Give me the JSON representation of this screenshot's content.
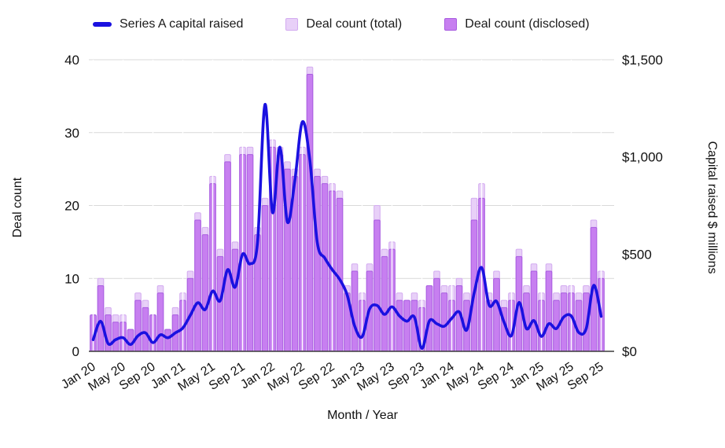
{
  "chart_data": {
    "type": "combo-bar-line",
    "x_axis": {
      "title": "Month / Year",
      "tick_every": 4,
      "months": [
        "Jan 20",
        "Feb 20",
        "Mar 20",
        "Apr 20",
        "May 20",
        "Jun 20",
        "Jul 20",
        "Aug 20",
        "Sep 20",
        "Oct 20",
        "Nov 20",
        "Dec 20",
        "Jan 21",
        "Feb 21",
        "Mar 21",
        "Apr 21",
        "May 21",
        "Jun 21",
        "Jul 21",
        "Aug 21",
        "Sep 21",
        "Oct 21",
        "Nov 21",
        "Dec 21",
        "Jan 22",
        "Feb 22",
        "Mar 22",
        "Apr 22",
        "May 22",
        "Jun 22",
        "Jul 22",
        "Aug 22",
        "Sep 22",
        "Oct 22",
        "Nov 22",
        "Dec 22",
        "Jan 23",
        "Feb 23",
        "Mar 23",
        "Apr 23",
        "May 23",
        "Jun 23",
        "Jul 23",
        "Aug 23",
        "Sep 23",
        "Oct 23",
        "Nov 23",
        "Dec 23",
        "Jan 24",
        "Feb 24",
        "Mar 24",
        "Apr 24",
        "May 24",
        "Jun 24",
        "Jul 24",
        "Aug 24",
        "Sep 24",
        "Oct 24",
        "Nov 24",
        "Dec 24",
        "Jan 25",
        "Feb 25",
        "Mar 25",
        "Apr 25",
        "May 25",
        "Jun 25",
        "Jul 25",
        "Aug 25",
        "Sep 25"
      ]
    },
    "y_left": {
      "title": "Deal count",
      "min": 0,
      "max": 40,
      "ticks": [
        0,
        10,
        20,
        30,
        40
      ]
    },
    "y_right": {
      "title": "Capital raised $ millions",
      "min": 0,
      "max": 1500,
      "tick_values": [
        0,
        500,
        1000,
        1500
      ],
      "tick_labels": [
        "$0",
        "$500",
        "$1,000",
        "$1,500"
      ]
    },
    "legend": [
      {
        "label": "Series A capital raised",
        "type": "line",
        "color": "#1a11e0"
      },
      {
        "label": "Deal count (total)",
        "type": "square",
        "color": "#e8d0f8"
      },
      {
        "label": "Deal count (disclosed)",
        "type": "square",
        "color": "#c77ff0"
      }
    ],
    "series": [
      {
        "name": "Deal count (total)",
        "type": "bar",
        "axis": "left",
        "values": [
          5,
          10,
          6,
          5,
          5,
          3,
          8,
          7,
          5,
          9,
          3,
          6,
          8,
          11,
          19,
          17,
          24,
          14,
          27,
          15,
          28,
          28,
          17,
          21,
          29,
          28,
          26,
          25,
          28,
          39,
          25,
          24,
          23,
          22,
          9,
          12,
          8,
          12,
          20,
          14,
          15,
          8,
          7,
          8,
          7,
          9,
          11,
          9,
          9,
          10,
          8,
          21,
          23,
          8,
          11,
          7,
          8,
          14,
          9,
          12,
          8,
          12,
          8,
          9,
          9,
          8,
          9,
          18,
          11
        ]
      },
      {
        "name": "Deal count (disclosed)",
        "type": "bar",
        "axis": "left",
        "values": [
          5,
          9,
          5,
          4,
          4,
          3,
          7,
          6,
          5,
          8,
          3,
          5,
          7,
          10,
          18,
          16,
          23,
          13,
          26,
          14,
          27,
          27,
          16,
          20,
          28,
          27,
          25,
          24,
          27,
          38,
          24,
          23,
          22,
          21,
          8,
          11,
          7,
          11,
          18,
          13,
          14,
          7,
          7,
          7,
          6,
          9,
          10,
          8,
          7,
          9,
          7,
          18,
          21,
          7,
          10,
          6,
          7,
          13,
          8,
          11,
          7,
          11,
          7,
          8,
          8,
          7,
          8,
          17,
          10
        ]
      },
      {
        "name": "Series A capital raised",
        "type": "line",
        "axis": "right",
        "values": [
          60,
          155,
          40,
          60,
          70,
          35,
          80,
          95,
          45,
          85,
          70,
          95,
          120,
          185,
          250,
          215,
          310,
          260,
          420,
          330,
          500,
          450,
          560,
          1270,
          715,
          1050,
          665,
          880,
          1180,
          985,
          560,
          480,
          420,
          370,
          290,
          130,
          75,
          218,
          236,
          190,
          229,
          182,
          155,
          176,
          15,
          156,
          142,
          129,
          170,
          203,
          109,
          300,
          431,
          238,
          257,
          150,
          81,
          251,
          117,
          158,
          77,
          142,
          117,
          177,
          182,
          97,
          117,
          339,
          180
        ]
      }
    ],
    "grid": true,
    "legend_position": "top"
  },
  "colors": {
    "line": "#1a11e0",
    "bar_total_fill": "#e8d0f8",
    "bar_total_border": "#d3abf0",
    "bar_disclosed_fill": "#c77ff0",
    "bar_disclosed_border": "#a85ce0",
    "grid": "#d9d9d9",
    "axis_line": "#3c3c3c",
    "text": "#111111",
    "tick_line": "#ffffff"
  }
}
